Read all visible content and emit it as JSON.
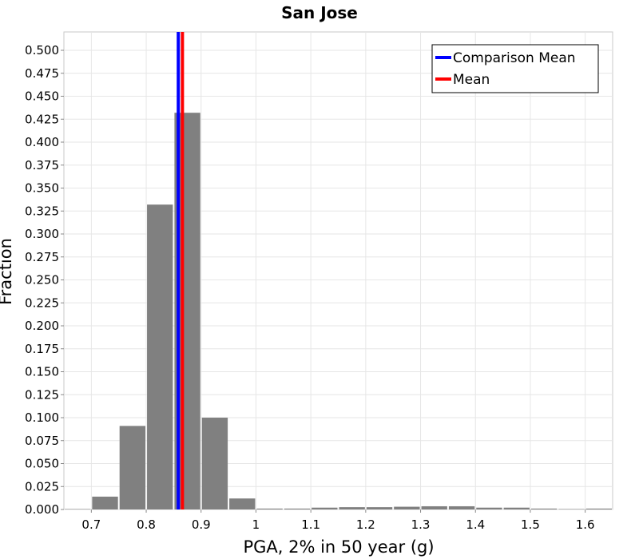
{
  "chart_data": {
    "type": "bar",
    "title": "San Jose",
    "xlabel": "PGA, 2% in 50 year (g)",
    "ylabel": "Fraction",
    "xlim": [
      0.65,
      1.65
    ],
    "ylim": [
      0,
      0.52
    ],
    "xticks": [
      "0.7",
      "0.8",
      "0.9",
      "1",
      "1.1",
      "1.2",
      "1.3",
      "1.4",
      "1.5",
      "1.6"
    ],
    "yticks": [
      "0.000",
      "0.025",
      "0.050",
      "0.075",
      "0.100",
      "0.125",
      "0.150",
      "0.175",
      "0.200",
      "0.225",
      "0.250",
      "0.275",
      "0.300",
      "0.325",
      "0.350",
      "0.375",
      "0.400",
      "0.425",
      "0.450",
      "0.475",
      "0.500"
    ],
    "bin_width": 0.05,
    "bins": [
      0.675,
      0.725,
      0.775,
      0.825,
      0.875,
      0.925,
      0.975,
      1.025,
      1.075,
      1.125,
      1.175,
      1.225,
      1.275,
      1.325,
      1.375,
      1.425,
      1.475,
      1.525,
      1.575,
      1.625
    ],
    "values": [
      0.0005,
      0.014,
      0.091,
      0.332,
      0.432,
      0.1,
      0.012,
      0.001,
      0.001,
      0.002,
      0.0025,
      0.0025,
      0.003,
      0.0035,
      0.0035,
      0.002,
      0.002,
      0.001,
      0.0005,
      0.001
    ],
    "bar_color": "#808080",
    "grid": true,
    "lines": [
      {
        "name": "Comparison Mean",
        "x": 0.8585,
        "color": "#0000ff"
      },
      {
        "name": "Mean",
        "x": 0.866,
        "color": "#ff0000"
      }
    ],
    "legend_position": "top-right"
  }
}
